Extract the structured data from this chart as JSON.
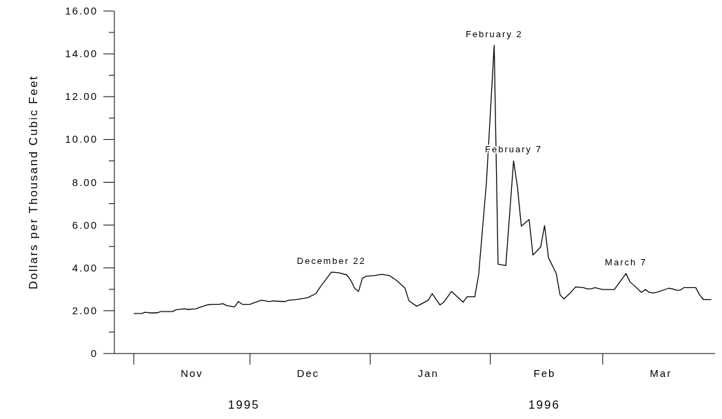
{
  "chart_data": {
    "type": "line",
    "ylabel": "Dollars per Thousand Cubic Feet",
    "x": [
      "1995-11-01",
      "1995-11-03",
      "1995-11-04",
      "1995-11-05",
      "1995-11-07",
      "1995-11-08",
      "1995-11-10",
      "1995-11-11",
      "1995-11-12",
      "1995-11-14",
      "1995-11-15",
      "1995-11-17",
      "1995-11-18",
      "1995-11-20",
      "1995-11-21",
      "1995-11-23",
      "1995-11-24",
      "1995-11-25",
      "1995-11-27",
      "1995-11-28",
      "1995-11-29",
      "1995-12-01",
      "1995-12-02",
      "1995-12-04",
      "1995-12-06",
      "1995-12-07",
      "1995-12-09",
      "1995-12-10",
      "1995-12-11",
      "1995-12-13",
      "1995-12-15",
      "1995-12-16",
      "1995-12-18",
      "1995-12-19",
      "1995-12-22",
      "1995-12-24",
      "1995-12-26",
      "1995-12-27",
      "1995-12-28",
      "1995-12-29",
      "1995-12-30",
      "1995-12-31",
      "1996-01-02",
      "1996-01-04",
      "1996-01-06",
      "1996-01-07",
      "1996-01-08",
      "1996-01-10",
      "1996-01-11",
      "1996-01-13",
      "1996-01-14",
      "1996-01-16",
      "1996-01-17",
      "1996-01-19",
      "1996-01-20",
      "1996-01-22",
      "1996-01-25",
      "1996-01-26",
      "1996-01-28",
      "1996-01-29",
      "1996-01-31",
      "1996-02-02",
      "1996-02-03",
      "1996-02-05",
      "1996-02-07",
      "1996-02-08",
      "1996-02-09",
      "1996-02-11",
      "1996-02-12",
      "1996-02-14",
      "1996-02-15",
      "1996-02-16",
      "1996-02-18",
      "1996-02-19",
      "1996-02-20",
      "1996-02-22",
      "1996-02-23",
      "1996-02-25",
      "1996-02-26",
      "1996-02-27",
      "1996-02-28",
      "1996-03-01",
      "1996-03-04",
      "1996-03-07",
      "1996-03-08",
      "1996-03-11",
      "1996-03-12",
      "1996-03-13",
      "1996-03-14",
      "1996-03-15",
      "1996-03-18",
      "1996-03-19",
      "1996-03-20",
      "1996-03-21",
      "1996-03-22",
      "1996-03-25",
      "1996-03-26",
      "1996-03-27",
      "1996-03-29"
    ],
    "series": [
      {
        "color": "#000000",
        "values": [
          1.87,
          1.87,
          1.93,
          1.9,
          1.9,
          1.96,
          1.96,
          1.96,
          2.05,
          2.09,
          2.06,
          2.09,
          2.15,
          2.27,
          2.3,
          2.3,
          2.33,
          2.24,
          2.18,
          2.43,
          2.3,
          2.3,
          2.37,
          2.49,
          2.43,
          2.46,
          2.43,
          2.43,
          2.49,
          2.52,
          2.58,
          2.62,
          2.8,
          3.08,
          3.8,
          3.77,
          3.67,
          3.42,
          3.05,
          2.9,
          3.52,
          3.61,
          3.64,
          3.7,
          3.64,
          3.52,
          3.39,
          3.05,
          2.46,
          2.21,
          2.3,
          2.49,
          2.8,
          2.27,
          2.4,
          2.9,
          2.4,
          2.65,
          2.65,
          3.7,
          8.0,
          14.4,
          4.17,
          4.11,
          9.0,
          7.78,
          5.95,
          6.26,
          4.6,
          4.98,
          5.98,
          4.48,
          3.74,
          2.74,
          2.55,
          2.9,
          3.11,
          3.08,
          3.02,
          3.02,
          3.08,
          2.99,
          2.99,
          3.74,
          3.36,
          2.86,
          2.99,
          2.86,
          2.83,
          2.86,
          3.05,
          3.02,
          2.96,
          2.96,
          3.08,
          3.08,
          2.74,
          2.52,
          2.52
        ]
      }
    ],
    "xlim": [
      "1995-10-27",
      "1996-03-30"
    ],
    "xticks": [
      {
        "value": "1995-11-01",
        "label": null
      },
      {
        "value": "1995-11-16",
        "label": "Nov"
      },
      {
        "value": "1995-12-01",
        "label": null
      },
      {
        "value": "1995-12-16",
        "label": "Dec"
      },
      {
        "value": "1996-01-01",
        "label": null
      },
      {
        "value": "1996-01-16",
        "label": "Jan"
      },
      {
        "value": "1996-02-01",
        "label": null
      },
      {
        "value": "1996-02-15",
        "label": "Feb"
      },
      {
        "value": "1996-03-01",
        "label": null
      },
      {
        "value": "1996-03-16",
        "label": "Mar"
      }
    ],
    "ylim": [
      0,
      16
    ],
    "yticks": [
      0,
      {
        "value": 1,
        "label": null
      },
      {
        "value": 2,
        "label": "2.00"
      },
      {
        "value": 3,
        "label": null
      },
      {
        "value": 4,
        "label": "4.00"
      },
      {
        "value": 5,
        "label": null
      },
      {
        "value": 6,
        "label": "6.00"
      },
      {
        "value": 7,
        "label": null
      },
      {
        "value": 8,
        "label": "8.00"
      },
      {
        "value": 9,
        "label": null
      },
      {
        "value": 10,
        "label": "10.00"
      },
      {
        "value": 11,
        "label": null
      },
      {
        "value": 12,
        "label": "12.00"
      },
      {
        "value": 13,
        "label": null
      },
      {
        "value": 14,
        "label": "14.00"
      },
      {
        "value": 15,
        "label": null
      },
      {
        "value": 16,
        "label": "16.00"
      }
    ],
    "grid": false,
    "legend": false,
    "marker": "none",
    "line_style": "solid",
    "annotations": [
      {
        "text": "December 22",
        "x": "1995-12-22",
        "y": 3.8
      },
      {
        "text": "February 2",
        "x": "1996-02-02",
        "y": 14.4
      },
      {
        "text": "February 7",
        "x": "1996-02-07",
        "y": 9.0
      },
      {
        "text": "March 7",
        "x": "1996-03-07",
        "y": 3.74
      },
      "1995",
      "1996"
    ]
  }
}
